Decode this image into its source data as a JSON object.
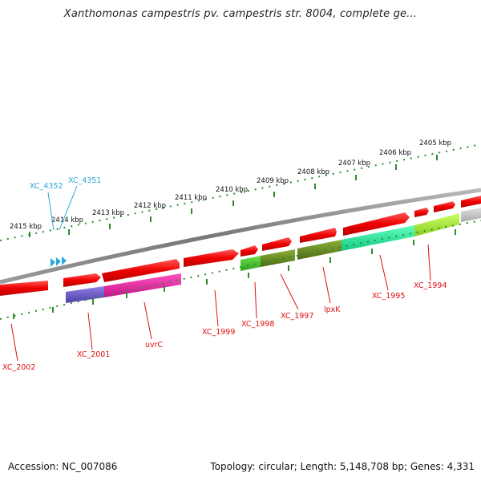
{
  "title": "Xanthomonas campestris pv. campestris str. 8004, complete ge...",
  "footer": {
    "accession": "Accession: NC_007086",
    "summary": "Topology: circular; Length: 5,148,708 bp; Genes: 4,331"
  },
  "colors": {
    "gene_red": "#ee0000",
    "backbone_gray": "#8c8c8c",
    "tick_green": "#2e8b2e",
    "label_red": "#dd1111",
    "label_cyan": "#29a9d8"
  },
  "kbp_labels": [
    "2415 kbp",
    "2414 kbp",
    "2413 kbp",
    "2412 kbp",
    "2411 kbp",
    "2410 kbp",
    "2409 kbp",
    "2408 kbp",
    "2407 kbp",
    "2406 kbp",
    "2405 kbp"
  ],
  "genes": [
    {
      "label": "XC_2002",
      "color": "#ee1111"
    },
    {
      "label": "XC_2001",
      "color": "#6a5acd"
    },
    {
      "label": "uvrC",
      "color": "#ee1a9c"
    },
    {
      "label": "XC_1999",
      "color": "#ee1111"
    },
    {
      "label": "XC_1998",
      "color": "#44cc33"
    },
    {
      "label": "XC_1997",
      "color": "#6b8e23"
    },
    {
      "label": "lpxK",
      "color": "#6b8e23"
    },
    {
      "label": "XC_1995",
      "color": "#22ee99"
    },
    {
      "label": "XC_1994",
      "color": "#aaee33"
    }
  ],
  "upper_labels": [
    {
      "label": "XC_4352",
      "color": "#29a9d8"
    },
    {
      "label": "XC_4351",
      "color": "#29a9d8"
    }
  ]
}
